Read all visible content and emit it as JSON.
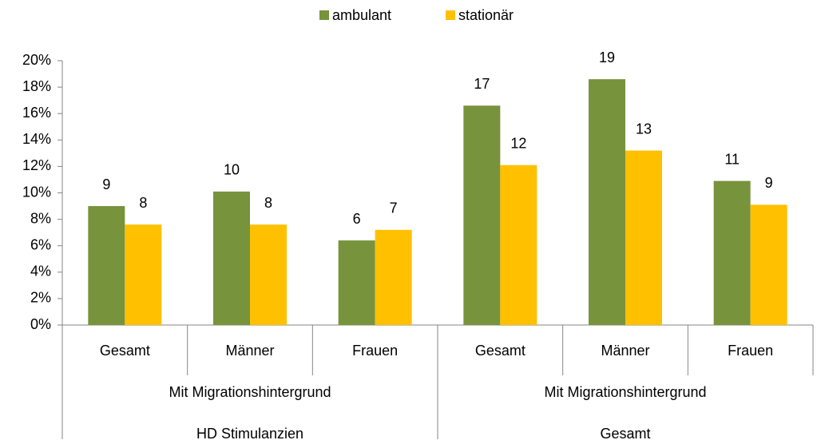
{
  "chart_data": {
    "type": "bar",
    "categories": [
      "Gesamt",
      "Männer",
      "Frauen",
      "Gesamt",
      "Männer",
      "Frauen"
    ],
    "groups": [
      {
        "name": "Mit Migrationshintergrund",
        "parent": "HD Stimulanzien"
      },
      {
        "name": "Mit Migrationshintergrund",
        "parent": "Gesamt"
      }
    ],
    "series": [
      {
        "name": "ambulant",
        "color": "#77933c",
        "values": [
          9.0,
          10.1,
          6.4,
          16.6,
          18.6,
          10.9
        ],
        "value_labels": [
          "9",
          "10",
          "6",
          "17",
          "19",
          "11"
        ]
      },
      {
        "name": "stationär",
        "color": "#ffc000",
        "values": [
          7.6,
          7.6,
          7.2,
          12.1,
          13.2,
          9.1
        ],
        "value_labels": [
          "8",
          "8",
          "7",
          "12",
          "13",
          "9"
        ]
      }
    ],
    "ylim": [
      0,
      20
    ],
    "yticks": [
      {
        "value": 0,
        "label": "0%"
      },
      {
        "value": 2,
        "label": "2%"
      },
      {
        "value": 4,
        "label": "4%"
      },
      {
        "value": 6,
        "label": "6%"
      },
      {
        "value": 8,
        "label": "8%"
      },
      {
        "value": 10,
        "label": "10%"
      },
      {
        "value": 12,
        "label": "12%"
      },
      {
        "value": 14,
        "label": "14%"
      },
      {
        "value": 16,
        "label": "16%"
      },
      {
        "value": 18,
        "label": "18%"
      },
      {
        "value": 20,
        "label": "20%"
      }
    ],
    "legend": "top",
    "grid": false
  }
}
